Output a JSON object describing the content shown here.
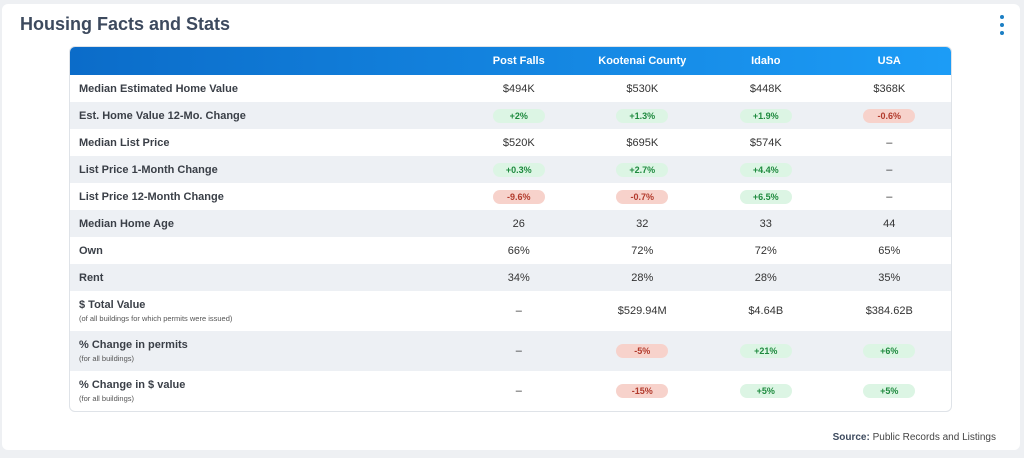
{
  "header": {
    "title": "Housing Facts and Stats"
  },
  "table": {
    "columns": [
      "Post Falls",
      "Kootenai County",
      "Idaho",
      "USA"
    ],
    "rows": [
      {
        "label": "Median Estimated Home Value",
        "cells": [
          {
            "text": "$494K"
          },
          {
            "text": "$530K"
          },
          {
            "text": "$448K"
          },
          {
            "text": "$368K"
          }
        ]
      },
      {
        "label": "Est. Home Value 12-Mo. Change",
        "cells": [
          {
            "text": "+2%",
            "badge": "green"
          },
          {
            "text": "+1.3%",
            "badge": "green"
          },
          {
            "text": "+1.9%",
            "badge": "green"
          },
          {
            "text": "-0.6%",
            "badge": "red"
          }
        ]
      },
      {
        "label": "Median List Price",
        "cells": [
          {
            "text": "$520K"
          },
          {
            "text": "$695K"
          },
          {
            "text": "$574K"
          },
          {
            "text": "–"
          }
        ]
      },
      {
        "label": "List Price 1-Month Change",
        "cells": [
          {
            "text": "+0.3%",
            "badge": "green"
          },
          {
            "text": "+2.7%",
            "badge": "green"
          },
          {
            "text": "+4.4%",
            "badge": "green"
          },
          {
            "text": "–"
          }
        ]
      },
      {
        "label": "List Price 12-Month Change",
        "cells": [
          {
            "text": "-9.6%",
            "badge": "red"
          },
          {
            "text": "-0.7%",
            "badge": "red"
          },
          {
            "text": "+6.5%",
            "badge": "green"
          },
          {
            "text": "–"
          }
        ]
      },
      {
        "label": "Median Home Age",
        "cells": [
          {
            "text": "26"
          },
          {
            "text": "32"
          },
          {
            "text": "33"
          },
          {
            "text": "44"
          }
        ]
      },
      {
        "label": "Own",
        "cells": [
          {
            "text": "66%"
          },
          {
            "text": "72%"
          },
          {
            "text": "72%"
          },
          {
            "text": "65%"
          }
        ]
      },
      {
        "label": "Rent",
        "cells": [
          {
            "text": "34%"
          },
          {
            "text": "28%"
          },
          {
            "text": "28%"
          },
          {
            "text": "35%"
          }
        ]
      },
      {
        "label": "$ Total Value",
        "note": "(of all buildings for which permits were issued)",
        "cells": [
          {
            "text": "–"
          },
          {
            "text": "$529.94M"
          },
          {
            "text": "$4.64B"
          },
          {
            "text": "$384.62B"
          }
        ]
      },
      {
        "label": "% Change in permits",
        "note": "(for all buildings)",
        "cells": [
          {
            "text": "–"
          },
          {
            "text": "-5%",
            "badge": "red"
          },
          {
            "text": "+21%",
            "badge": "green"
          },
          {
            "text": "+6%",
            "badge": "green"
          }
        ]
      },
      {
        "label": "% Change in $ value",
        "note": "(for all buildings)",
        "cells": [
          {
            "text": "–"
          },
          {
            "text": "-15%",
            "badge": "red"
          },
          {
            "text": "+5%",
            "badge": "green"
          },
          {
            "text": "+5%",
            "badge": "green"
          }
        ]
      }
    ]
  },
  "source": {
    "label": "Source:",
    "text": "Public Records and Listings"
  }
}
